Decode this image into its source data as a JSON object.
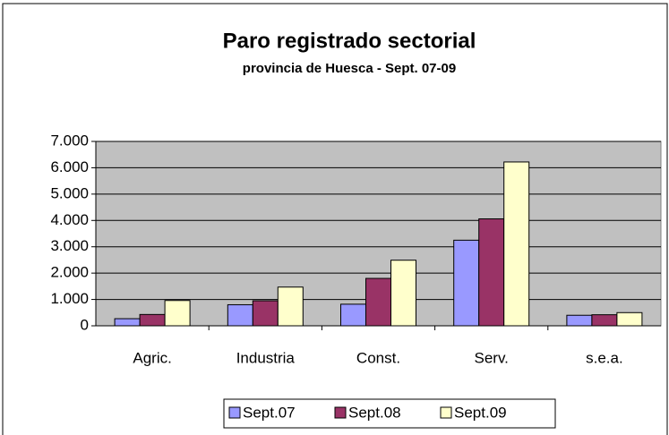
{
  "chart_data": {
    "type": "bar",
    "title": "Paro registrado sectorial",
    "subtitle": "provincia de Huesca - Sept. 07-09",
    "categories": [
      "Agric.",
      "Industria",
      "Const.",
      "Serv.",
      "s.e.a."
    ],
    "series": [
      {
        "name": "Sept.07",
        "color": "#9999ff",
        "values": [
          270,
          800,
          820,
          3250,
          400
        ]
      },
      {
        "name": "Sept.08",
        "color": "#993366",
        "values": [
          430,
          950,
          1800,
          4060,
          420
        ]
      },
      {
        "name": "Sept.09",
        "color": "#ffffcc",
        "values": [
          960,
          1470,
          2490,
          6220,
          500
        ]
      }
    ],
    "ylim": [
      0,
      7000
    ],
    "yticks": [
      0,
      {
        "value": 1000,
        "label": "1.000"
      },
      {
        "value": 2000,
        "label": "2.000"
      },
      {
        "value": 3000,
        "label": "3.000"
      },
      {
        "value": 4000,
        "label": "4.000"
      },
      {
        "value": 5000,
        "label": "5.000"
      },
      {
        "value": 6000,
        "label": "6.000"
      },
      {
        "value": 7000,
        "label": "7.000"
      }
    ],
    "grid": true,
    "legend": "bottom"
  }
}
